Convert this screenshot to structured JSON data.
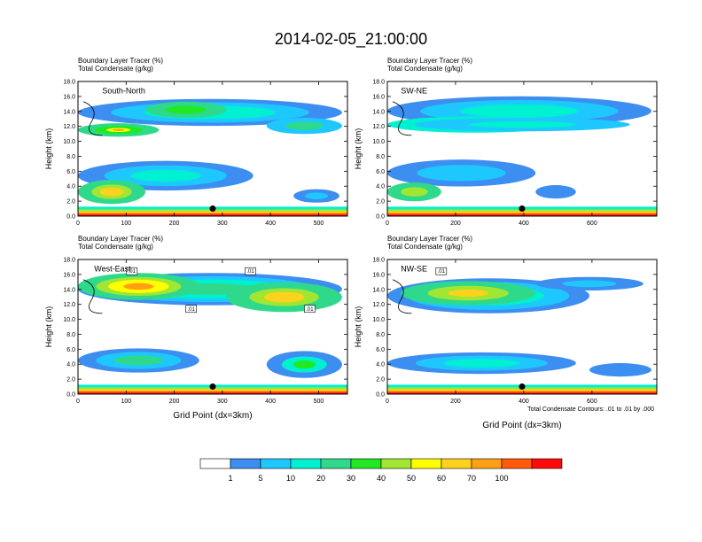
{
  "page": {
    "title": "2014-02-05_21:00:00"
  },
  "panel_titles": {
    "line1": "Boundary Layer Tracer   (%)",
    "line2": "Total Condensate   (g/kg)"
  },
  "footnote": "Total Condensate Contours: .01 to .01 by .000",
  "chart_data": [
    {
      "type": "heatmap",
      "panel": "South-North",
      "label": "South-North",
      "ylabel": "Height (km)",
      "xlabel": "",
      "xlim": [
        0,
        560
      ],
      "ylim": [
        0,
        18
      ],
      "xticks": [
        "0",
        "100",
        "200",
        "300",
        "400",
        "500"
      ],
      "yticks": [
        "0.0",
        "2.0",
        "4.0",
        "6.0",
        "8.0",
        "10.0",
        "12.0",
        "14.0",
        "16.0",
        "18.0"
      ],
      "marker": {
        "x": 280,
        "y": 1.0
      }
    },
    {
      "type": "heatmap",
      "panel": "SW-NE",
      "label": "SW-NE",
      "ylabel": "Height (km)",
      "xlabel": "",
      "xlim": [
        0,
        790
      ],
      "ylim": [
        0,
        18
      ],
      "xticks": [
        "0",
        "200",
        "400",
        "600"
      ],
      "yticks": [
        "0.0",
        "2.0",
        "4.0",
        "6.0",
        "8.0",
        "10.0",
        "12.0",
        "14.0",
        "16.0",
        "18.0"
      ],
      "marker": {
        "x": 395,
        "y": 1.0
      }
    },
    {
      "type": "heatmap",
      "panel": "West-East",
      "label": "West-East",
      "ylabel": "Height (km)",
      "xlabel": "Grid Point (dx=3km)",
      "xlim": [
        0,
        560
      ],
      "ylim": [
        0,
        18
      ],
      "xticks": [
        "0",
        "100",
        "200",
        "300",
        "400",
        "500"
      ],
      "yticks": [
        "0.0",
        "2.0",
        "4.0",
        "6.0",
        "8.0",
        "10.0",
        "12.0",
        "14.0",
        "16.0",
        "18.0"
      ],
      "marker": {
        "x": 280,
        "y": 1.0
      },
      "contour_labels": [
        ".01",
        ".01",
        ".01",
        ".01"
      ]
    },
    {
      "type": "heatmap",
      "panel": "NW-SE",
      "label": "NW-SE",
      "ylabel": "Height (km)",
      "xlabel": "Grid Point (dx=3km)",
      "xlim": [
        0,
        790
      ],
      "ylim": [
        0,
        18
      ],
      "xticks": [
        "0",
        "200",
        "400",
        "600"
      ],
      "yticks": [
        "0.0",
        "2.0",
        "4.0",
        "6.0",
        "8.0",
        "10.0",
        "12.0",
        "14.0",
        "16.0",
        "18.0"
      ],
      "marker": {
        "x": 395,
        "y": 1.0
      },
      "contour_labels": [
        ".01"
      ]
    }
  ],
  "colorbar": {
    "labels": [
      "1",
      "5",
      "10",
      "20",
      "30",
      "40",
      "50",
      "60",
      "70",
      "100"
    ],
    "colors": [
      "#ffffff",
      "#3c8ef0",
      "#1ec8ff",
      "#00f0d2",
      "#2fd98c",
      "#22e822",
      "#a0e632",
      "#ffff00",
      "#ffd21e",
      "#ffa014",
      "#ff5a0a",
      "#ff0a0a"
    ]
  }
}
